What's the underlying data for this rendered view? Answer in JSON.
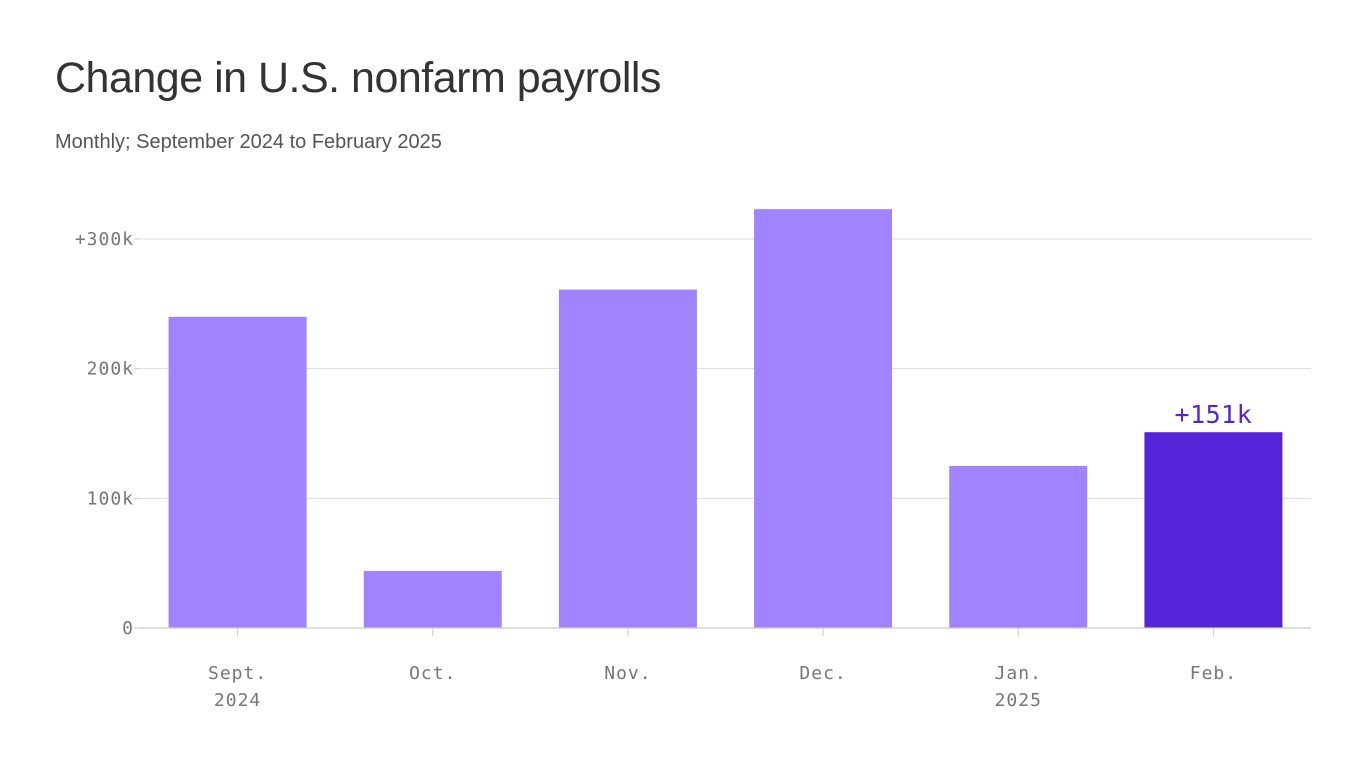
{
  "colors": {
    "bar": "#a183ff",
    "bar_highlight": "#5425d8",
    "grid": "#dddddd",
    "axis": "#cccccc",
    "callout": "#5425d8"
  },
  "chart_data": {
    "type": "bar",
    "title": "Change in U.S. nonfarm payrolls",
    "subtitle": "Monthly; September 2024 to February 2025",
    "categories": [
      "Sept.",
      "Oct.",
      "Nov.",
      "Dec.",
      "Jan.",
      "Feb."
    ],
    "category_years": [
      "2024",
      "",
      "",
      "",
      "2025",
      ""
    ],
    "values": [
      240,
      44,
      261,
      323,
      125,
      151
    ],
    "units": "thousands",
    "highlight_index": 5,
    "callout_label": "+151k",
    "ylim": [
      0,
      300
    ],
    "yticks": [
      0,
      100,
      200,
      300
    ],
    "ytick_labels": [
      "0",
      "100k",
      "200k",
      "+300k"
    ],
    "grid": true,
    "legend": "none"
  }
}
